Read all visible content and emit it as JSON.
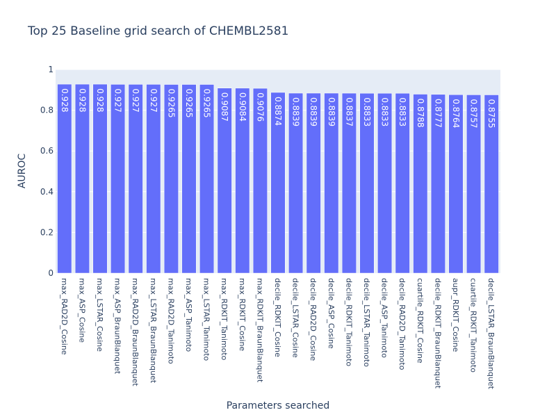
{
  "chart_data": {
    "type": "bar",
    "title": "Top 25 Baseline grid search of CHEMBL2581",
    "xlabel": "Parameters searched",
    "ylabel": "AUROC",
    "ylim": [
      0,
      1
    ],
    "yticks": [
      0,
      0.2,
      0.4,
      0.6,
      0.8,
      1
    ],
    "ytick_labels": [
      "0",
      "0.2",
      "0.4",
      "0.6",
      "0.8",
      "1"
    ],
    "grid": true,
    "categories": [
      "max_RAD2D_Cosine",
      "max_ASP_Cosine",
      "max_LSTAR_Cosine",
      "max_ASP_BraunBlanquet",
      "max_RAD2D_BraunBlanquet",
      "max_LSTAR_BraunBlanquet",
      "max_RAD2D_Tanimoto",
      "max_ASP_Tanimoto",
      "max_LSTAR_Tanimoto",
      "max_RDKIT_Tanimoto",
      "max_RDKIT_Cosine",
      "max_RDKIT_BraunBlanquet",
      "decile_RDKIT_Cosine",
      "decile_LSTAR_Cosine",
      "decile_RAD2D_Cosine",
      "decile_ASP_Cosine",
      "decile_RDKIT_Tanimoto",
      "decile_LSTAR_Tanimoto",
      "decile_ASP_Tanimoto",
      "decile_RAD2D_Tanimoto",
      "cuartile_RDKIT_Cosine",
      "decile_RDKIT_BraunBlanquet",
      "aupr_RDKIT_Cosine",
      "cuartile_RDKIT_Tanimoto",
      "decile_LSTAR_BraunBlanquet"
    ],
    "values": [
      0.928,
      0.928,
      0.928,
      0.927,
      0.927,
      0.927,
      0.9265,
      0.9265,
      0.9265,
      0.9087,
      0.9084,
      0.9076,
      0.8874,
      0.8839,
      0.8839,
      0.8839,
      0.8837,
      0.8833,
      0.8833,
      0.8833,
      0.8788,
      0.8777,
      0.8764,
      0.8757,
      0.8755
    ],
    "value_labels": [
      "0.928",
      "0.928",
      "0.928",
      "0.927",
      "0.927",
      "0.927",
      "0.9265",
      "0.9265",
      "0.9265",
      "0.9087",
      "0.9084",
      "0.9076",
      "0.8874",
      "0.8839",
      "0.8839",
      "0.8839",
      "0.8837",
      "0.8833",
      "0.8833",
      "0.8833",
      "0.8788",
      "0.8777",
      "0.8764",
      "0.8757",
      "0.8755"
    ]
  },
  "colors": {
    "bar": "#636efa",
    "plot_bg": "#e5ecf6",
    "grid": "#ffffff",
    "text": "#2a3f5f",
    "tick_text": "#2a3f5f",
    "bar_label": "#ffffff"
  }
}
